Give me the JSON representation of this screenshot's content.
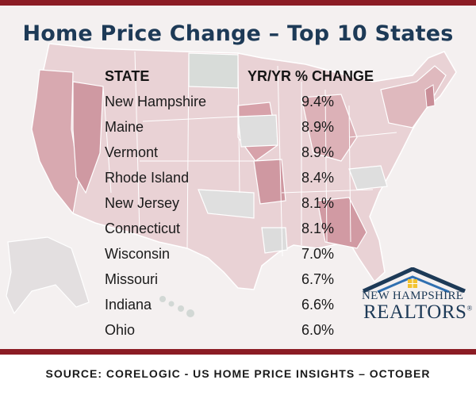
{
  "title": "Home Price Change – Top 10 States",
  "table": {
    "header_state": "STATE",
    "header_change": "YR/YR % CHANGE",
    "rows": [
      {
        "state": "New Hampshire",
        "change": "9.4%"
      },
      {
        "state": "Maine",
        "change": "8.9%"
      },
      {
        "state": "Vermont",
        "change": "8.9%"
      },
      {
        "state": "Rhode Island",
        "change": "8.4%"
      },
      {
        "state": "New Jersey",
        "change": "8.1%"
      },
      {
        "state": "Connecticut",
        "change": "8.1%"
      },
      {
        "state": "Wisconsin",
        "change": "7.0%"
      },
      {
        "state": "Missouri",
        "change": "6.7%"
      },
      {
        "state": "Indiana",
        "change": "6.6%"
      },
      {
        "state": "Ohio",
        "change": "6.0%"
      }
    ]
  },
  "logo": {
    "line1": "NEW HAMPSHIRE",
    "line2": "REALTORS",
    "mark": "®"
  },
  "source": "SOURCE: CORELOGIC - US HOME PRICE INSIGHTS – OCTOBER",
  "colors": {
    "accent": "#8b1c24",
    "title": "#1d3a57",
    "map_light": "#e6c9cd",
    "map_mid": "#d7a6ad",
    "map_gray": "#dcdcdc"
  }
}
